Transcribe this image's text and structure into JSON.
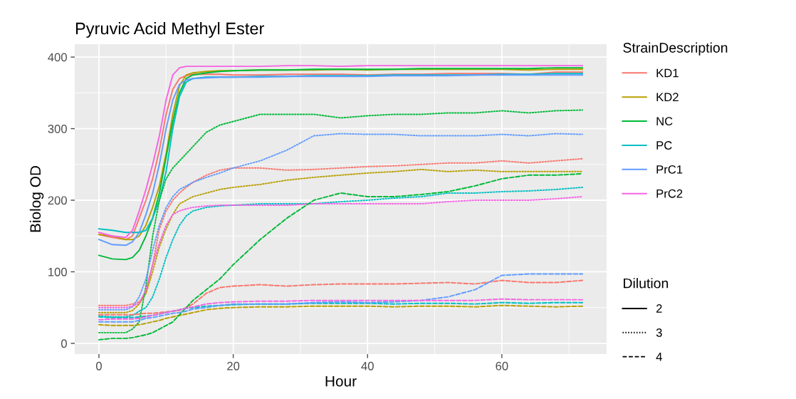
{
  "chart_data": {
    "type": "line",
    "title": "Pyruvic Acid Methyl Ester",
    "xlabel": "Hour",
    "ylabel": "Biolog OD",
    "legend_title": [
      "StrainDescription",
      "Dilution"
    ],
    "legend": "right",
    "grid": true,
    "xlim": [
      -3.6,
      75.6
    ],
    "xticks": [
      0,
      20,
      40,
      60
    ],
    "ylim": [
      -15,
      418
    ],
    "yticks": [
      0,
      100,
      200,
      300,
      400
    ],
    "x": [
      0,
      2,
      4,
      5,
      6,
      7,
      8,
      9,
      10,
      11,
      12,
      13,
      14,
      16,
      18,
      20,
      24,
      28,
      32,
      36,
      40,
      44,
      48,
      52,
      56,
      60,
      64,
      68,
      72
    ],
    "annotations": [
      "2",
      "3",
      "4"
    ],
    "series": [
      {
        "name": "KD1",
        "color": "#F8766D",
        "line_style": "solid",
        "values": [
          152,
          148,
          145,
          150,
          175,
          200,
          230,
          270,
          320,
          355,
          370,
          374,
          376,
          376,
          376,
          375,
          375,
          376,
          376,
          376,
          375,
          376,
          376,
          377,
          377,
          377,
          376,
          379,
          379
        ]
      },
      {
        "name": "KD2",
        "color": "#B79F00",
        "line_style": "solid",
        "values": [
          152,
          150,
          145,
          145,
          150,
          165,
          190,
          220,
          265,
          320,
          360,
          375,
          378,
          380,
          381,
          381,
          382,
          382,
          382,
          383,
          382,
          383,
          383,
          383,
          383,
          383,
          382,
          383,
          383
        ]
      },
      {
        "name": "NC",
        "color": "#00BA38",
        "line_style": "solid",
        "values": [
          123,
          118,
          117,
          120,
          130,
          150,
          175,
          210,
          260,
          310,
          350,
          370,
          375,
          378,
          380,
          381,
          382,
          382,
          383,
          383,
          383,
          383,
          384,
          384,
          384,
          384,
          384,
          385,
          385
        ]
      },
      {
        "name": "PC",
        "color": "#00BFC4",
        "line_style": "solid",
        "values": [
          160,
          158,
          155,
          155,
          155,
          158,
          175,
          200,
          240,
          300,
          345,
          365,
          370,
          372,
          372,
          372,
          373,
          373,
          374,
          374,
          374,
          375,
          375,
          375,
          375,
          376,
          376,
          377,
          377
        ]
      },
      {
        "name": "PrC1",
        "color": "#619CFF",
        "line_style": "solid",
        "values": [
          145,
          138,
          137,
          142,
          155,
          180,
          210,
          250,
          300,
          340,
          362,
          368,
          370,
          371,
          372,
          372,
          372,
          373,
          373,
          373,
          373,
          374,
          374,
          374,
          375,
          375,
          375,
          375,
          375
        ]
      },
      {
        "name": "PrC2",
        "color": "#F564E3",
        "line_style": "solid",
        "values": [
          155,
          150,
          148,
          158,
          185,
          215,
          250,
          290,
          340,
          375,
          385,
          387,
          387,
          387,
          387,
          387,
          387,
          388,
          388,
          387,
          388,
          388,
          388,
          388,
          388,
          388,
          388,
          388,
          388
        ]
      },
      {
        "color": "#F8766D",
        "line_style": "dotted",
        "values": [
          53,
          53,
          53,
          55,
          58,
          70,
          110,
          160,
          185,
          200,
          210,
          218,
          225,
          235,
          242,
          245,
          245,
          242,
          243,
          245,
          247,
          248,
          250,
          252,
          252,
          255,
          252,
          255,
          258
        ]
      },
      {
        "color": "#B79F00",
        "line_style": "dotted",
        "values": [
          43,
          43,
          43,
          46,
          55,
          70,
          100,
          135,
          160,
          180,
          195,
          200,
          205,
          210,
          215,
          218,
          222,
          228,
          232,
          235,
          238,
          240,
          243,
          240,
          242,
          240,
          240,
          240,
          240
        ]
      },
      {
        "color": "#00BA38",
        "line_style": "dotted",
        "values": [
          15,
          15,
          15,
          20,
          30,
          80,
          150,
          200,
          230,
          245,
          255,
          265,
          275,
          295,
          305,
          310,
          320,
          320,
          320,
          315,
          318,
          320,
          320,
          322,
          322,
          325,
          322,
          325,
          326
        ]
      },
      {
        "color": "#00BFC4",
        "line_style": "dotted",
        "values": [
          38,
          37,
          37,
          39,
          45,
          50,
          65,
          90,
          120,
          145,
          165,
          178,
          185,
          190,
          192,
          193,
          195,
          195,
          195,
          198,
          200,
          203,
          205,
          210,
          210,
          212,
          213,
          215,
          218
        ]
      },
      {
        "color": "#619CFF",
        "line_style": "dotted",
        "values": [
          47,
          47,
          47,
          51,
          65,
          90,
          130,
          165,
          190,
          205,
          215,
          220,
          225,
          232,
          238,
          245,
          255,
          270,
          290,
          293,
          292,
          292,
          290,
          290,
          290,
          292,
          290,
          293,
          292
        ]
      },
      {
        "color": "#F564E3",
        "line_style": "dotted",
        "values": [
          50,
          50,
          50,
          52,
          56,
          75,
          110,
          140,
          165,
          180,
          185,
          188,
          190,
          192,
          193,
          193,
          193,
          193,
          195,
          195,
          195,
          195,
          195,
          198,
          200,
          200,
          200,
          202,
          205
        ]
      },
      {
        "color": "#F8766D",
        "line_style": "dashed",
        "values": [
          40,
          40,
          40,
          40,
          41,
          42,
          42,
          43,
          44,
          45,
          46,
          50,
          55,
          70,
          78,
          80,
          82,
          80,
          82,
          83,
          83,
          83,
          84,
          85,
          83,
          88,
          85,
          85,
          88
        ]
      },
      {
        "color": "#B79F00",
        "line_style": "dashed",
        "values": [
          26,
          25,
          25,
          25,
          26,
          28,
          30,
          32,
          35,
          37,
          39,
          41,
          43,
          47,
          49,
          50,
          51,
          51,
          52,
          52,
          52,
          51,
          52,
          52,
          51,
          53,
          52,
          51,
          52
        ]
      },
      {
        "color": "#00BA38",
        "line_style": "dashed",
        "values": [
          5,
          7,
          7,
          8,
          10,
          12,
          15,
          20,
          25,
          30,
          40,
          50,
          60,
          75,
          90,
          110,
          145,
          175,
          200,
          210,
          205,
          205,
          208,
          212,
          220,
          230,
          235,
          235,
          237
        ]
      },
      {
        "color": "#00BFC4",
        "line_style": "dashed",
        "values": [
          37,
          36,
          36,
          36,
          37,
          38,
          39,
          41,
          43,
          45,
          47,
          49,
          50,
          52,
          53,
          54,
          55,
          55,
          56,
          56,
          56,
          55,
          56,
          56,
          55,
          57,
          56,
          57,
          57
        ]
      },
      {
        "color": "#619CFF",
        "line_style": "dashed",
        "values": [
          30,
          30,
          30,
          30,
          32,
          35,
          36,
          38,
          40,
          42,
          43,
          45,
          48,
          50,
          53,
          55,
          55,
          55,
          57,
          58,
          57,
          58,
          60,
          65,
          75,
          95,
          97,
          97,
          97
        ]
      },
      {
        "color": "#F564E3",
        "line_style": "dashed",
        "values": [
          33,
          34,
          34,
          34,
          35,
          37,
          39,
          41,
          43,
          45,
          47,
          49,
          51,
          55,
          57,
          58,
          59,
          59,
          60,
          60,
          60,
          60,
          60,
          60,
          60,
          62,
          61,
          61,
          61
        ]
      }
    ]
  }
}
